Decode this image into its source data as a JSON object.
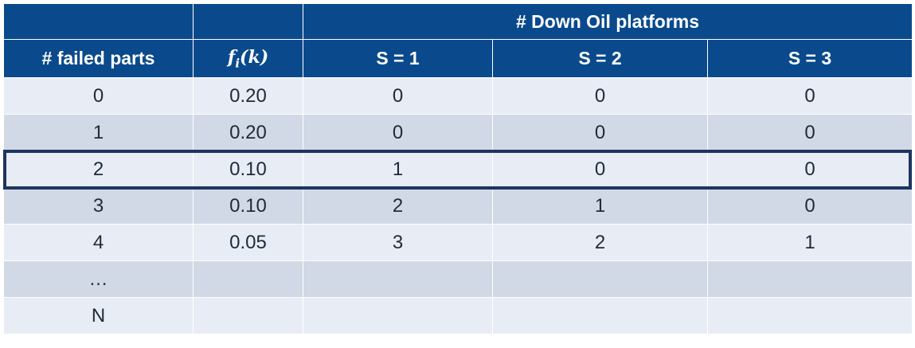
{
  "header": {
    "group_label": "# Down Oil platforms",
    "col_failed_parts": "# failed parts",
    "col_f_main": "f",
    "col_f_sub": "i",
    "col_f_arg": "(k)",
    "col_s1": "S = 1",
    "col_s2": "S = 2",
    "col_s3": "S = 3"
  },
  "rows": [
    {
      "failed": "0",
      "f": "0.20",
      "s1": "0",
      "s2": "0",
      "s3": "0"
    },
    {
      "failed": "1",
      "f": "0.20",
      "s1": "0",
      "s2": "0",
      "s3": "0"
    },
    {
      "failed": "2",
      "f": "0.10",
      "s1": "1",
      "s2": "0",
      "s3": "0"
    },
    {
      "failed": "3",
      "f": "0.10",
      "s1": "2",
      "s2": "1",
      "s3": "0"
    },
    {
      "failed": "4",
      "f": "0.05",
      "s1": "3",
      "s2": "2",
      "s3": "1"
    },
    {
      "failed": "…",
      "f": "",
      "s1": "",
      "s2": "",
      "s3": ""
    },
    {
      "failed": "N",
      "f": "",
      "s1": "",
      "s2": "",
      "s3": ""
    }
  ],
  "highlighted_row": "2",
  "colors": {
    "header_bg": "#0a4a8c",
    "row_light": "#e8edf5",
    "row_dark": "#d1d9e6",
    "highlight_border": "#1c3560"
  }
}
